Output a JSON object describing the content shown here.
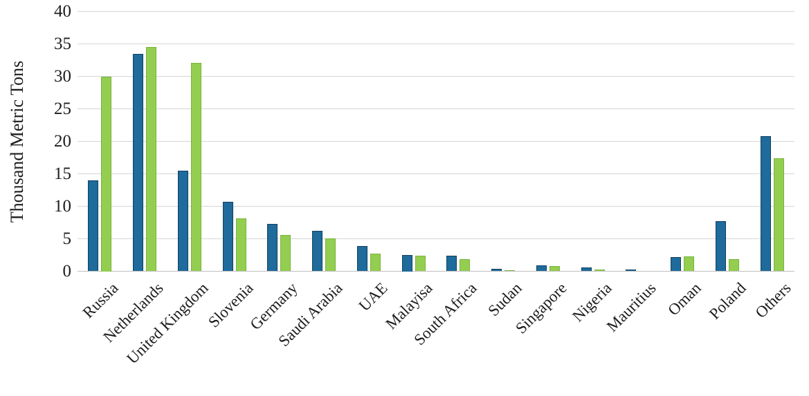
{
  "chart_data": {
    "type": "bar",
    "title": "",
    "xlabel": "",
    "ylabel": "Thousand Metric Tons",
    "categories": [
      "Russia",
      "Netherlands",
      "United Kingdom",
      "Slovenia",
      "Germany",
      "Saudi Arabia",
      "UAE",
      "Malayisa",
      "South Africa",
      "Sudan",
      "Singapore",
      "Nigeria",
      "Mauritius",
      "Oman",
      "Poland",
      "Others"
    ],
    "series": [
      {
        "name": "blue",
        "fill_color": "#1e6b9c",
        "border_color": "#143f5d",
        "values": [
          14.0,
          33.5,
          15.5,
          10.7,
          7.3,
          6.2,
          3.9,
          2.5,
          2.4,
          0.4,
          0.9,
          0.6,
          0.3,
          2.2,
          7.7,
          20.8
        ]
      },
      {
        "name": "green",
        "fill_color": "#94ce51",
        "border_color": "#79b33c",
        "values": [
          30.0,
          34.5,
          32.1,
          8.1,
          5.6,
          5.1,
          2.7,
          2.4,
          1.9,
          0.2,
          0.8,
          0.3,
          0.0,
          2.3,
          1.9,
          17.4
        ]
      }
    ],
    "ylim": [
      0,
      40
    ],
    "ytick_step": 5,
    "ytick_labels": [
      "0",
      "5",
      "10",
      "15",
      "20",
      "25",
      "30",
      "35",
      "40"
    ],
    "grid": true,
    "legend_position": "none",
    "gridline_color": "#d6d6d6",
    "axisline_color": "#bfbfbf",
    "text_color": "#1c1c1c"
  }
}
